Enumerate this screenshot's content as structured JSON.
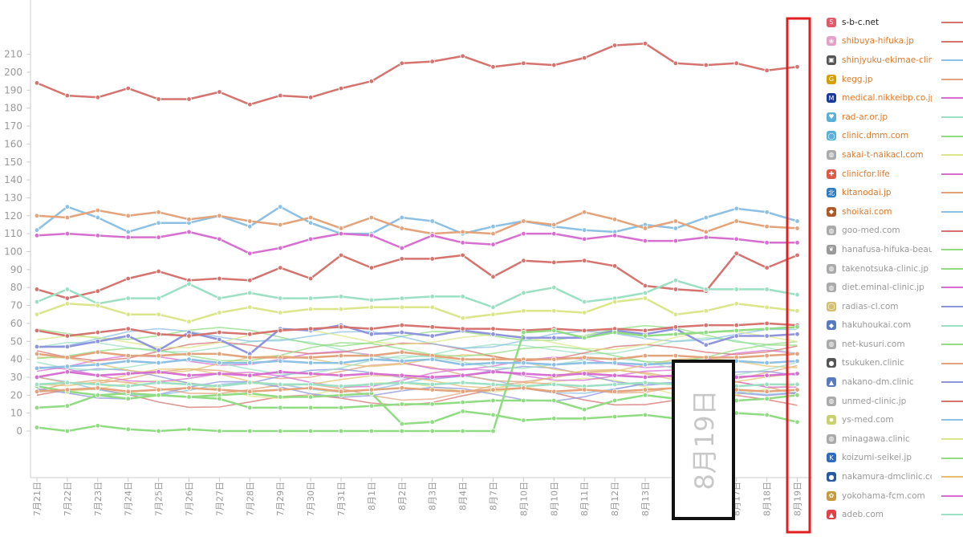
{
  "chart_data": {
    "type": "line",
    "categories": [
      "7月21日",
      "7月22日",
      "7月23日",
      "7月24日",
      "7月25日",
      "7月26日",
      "7月27日",
      "7月28日",
      "7月29日",
      "7月30日",
      "7月31日",
      "8月1日",
      "8月2日",
      "8月3日",
      "8月4日",
      "8月7日",
      "8月10日",
      "8月10日",
      "8月11日",
      "8月12日",
      "8月13日",
      "",
      "",
      "8月17日",
      "8月18日",
      "8月19日"
    ],
    "ylim": [
      0,
      210
    ],
    "yticks": [
      0,
      10,
      20,
      30,
      40,
      50,
      60,
      70,
      80,
      90,
      100,
      110,
      120,
      130,
      140,
      150,
      160,
      170,
      180,
      190,
      200,
      210
    ],
    "series": [
      {
        "name": "s-b-c.net",
        "color": "#d5736f",
        "values": [
          194,
          187,
          186,
          191,
          185,
          185,
          189,
          182,
          187,
          186,
          191,
          195,
          205,
          206,
          209,
          203,
          205,
          204,
          208,
          215,
          216,
          205,
          204,
          205,
          201,
          203
        ]
      },
      {
        "name": "shibuya-hifuka.jp",
        "color": "#8cc0e4",
        "values": [
          112,
          125,
          119,
          111,
          116,
          116,
          120,
          114,
          125,
          116,
          110,
          110,
          119,
          117,
          110,
          114,
          117,
          114,
          112,
          111,
          115,
          113,
          119,
          124,
          122,
          117
        ]
      },
      {
        "name": "shinjyuku-ekimae-clinic",
        "color": "#e3a37b",
        "values": [
          120,
          119,
          123,
          120,
          122,
          118,
          120,
          117,
          115,
          119,
          113,
          119,
          113,
          110,
          111,
          110,
          117,
          115,
          122,
          118,
          113,
          117,
          111,
          117,
          114,
          113
        ]
      },
      {
        "name": "kegg.jp",
        "color": "#d76fd1",
        "values": [
          109,
          110,
          109,
          108,
          108,
          111,
          107,
          99,
          102,
          107,
          110,
          109,
          102,
          109,
          105,
          104,
          110,
          110,
          107,
          109,
          106,
          106,
          108,
          107,
          105,
          105
        ]
      },
      {
        "name": "medical.nikkeibp.co.jp",
        "color": "#d5736f",
        "values": [
          79,
          74,
          78,
          85,
          89,
          84,
          85,
          84,
          91,
          85,
          98,
          91,
          96,
          96,
          98,
          86,
          95,
          94,
          95,
          92,
          81,
          79,
          78,
          99,
          91,
          98
        ]
      },
      {
        "name": "rad-ar.or.jp",
        "color": "#9ce0c4",
        "values": [
          72,
          79,
          71,
          74,
          74,
          82,
          74,
          77,
          74,
          74,
          75,
          73,
          74,
          75,
          75,
          69,
          77,
          80,
          72,
          74,
          77,
          84,
          79,
          79,
          79,
          76
        ]
      },
      {
        "name": "clinic.dmm.com",
        "color": "#dbe68a",
        "values": [
          65,
          71,
          70,
          65,
          65,
          61,
          66,
          69,
          66,
          68,
          68,
          69,
          69,
          69,
          63,
          65,
          67,
          67,
          66,
          72,
          74,
          65,
          67,
          71,
          69,
          67
        ]
      },
      {
        "name": "sakai-t-naikacl.com",
        "color": "#8e95dd",
        "values": [
          47,
          47,
          50,
          53,
          45,
          55,
          51,
          43,
          57,
          56,
          59,
          54,
          55,
          53,
          56,
          54,
          52,
          52,
          52,
          56,
          54,
          57,
          48,
          53,
          53,
          54
        ]
      },
      {
        "name": "clinicfor.life",
        "color": "#d5736f",
        "values": [
          56,
          53,
          55,
          57,
          54,
          53,
          55,
          54,
          56,
          57,
          58,
          57,
          59,
          58,
          57,
          57,
          56,
          57,
          56,
          57,
          56,
          58,
          59,
          59,
          60,
          59
        ]
      },
      {
        "name": "kitanodai.jp",
        "color": "#90dc82",
        "values": [
          2,
          0,
          3,
          1,
          0,
          1,
          0,
          0,
          0,
          0,
          0,
          0,
          0,
          0,
          0,
          0,
          55,
          56,
          52,
          55,
          53,
          54,
          55,
          56,
          57,
          58
        ]
      },
      {
        "name": "shoikai.com",
        "color": "#90dc82",
        "values": [
          25,
          22,
          20,
          21,
          20,
          19,
          20,
          21,
          19,
          19,
          20,
          21,
          4,
          5,
          11,
          9,
          6,
          7,
          7,
          8,
          9,
          7,
          8,
          10,
          9,
          5
        ]
      },
      {
        "name": "goo-med.com",
        "color": "#e3a37b",
        "values": [
          43,
          41,
          44,
          42,
          42,
          43,
          43,
          41,
          41,
          41,
          42,
          42,
          44,
          42,
          40,
          40,
          40,
          40,
          41,
          40,
          42,
          42,
          41,
          41,
          42,
          43
        ]
      },
      {
        "name": "hanafusa-hifuka-beauty",
        "color": "#8cc0e4",
        "values": [
          35,
          36,
          37,
          39,
          38,
          40,
          38,
          38,
          39,
          38,
          38,
          40,
          39,
          40,
          37,
          38,
          38,
          37,
          38,
          38,
          37,
          38,
          38,
          39,
          38,
          39
        ]
      },
      {
        "name": "takenotsuka-clinic.jp",
        "color": "#d76fd1",
        "values": [
          30,
          33,
          31,
          32,
          33,
          31,
          32,
          31,
          33,
          32,
          31,
          32,
          31,
          30,
          31,
          33,
          32,
          31,
          32,
          31,
          30,
          31,
          32,
          30,
          31,
          32
        ]
      },
      {
        "name": "diet.eminal-clinic.jp",
        "color": "#9ce0c4",
        "values": [
          26,
          27,
          26,
          25,
          27,
          26,
          25,
          27,
          26,
          26,
          25,
          26,
          27,
          26,
          27,
          26,
          25,
          26,
          25,
          26,
          27,
          26,
          26,
          25,
          26,
          26
        ]
      },
      {
        "name": "radias-cl.com",
        "color": "#e3a37b",
        "values": [
          22,
          23,
          24,
          22,
          23,
          24,
          23,
          22,
          23,
          24,
          22,
          23,
          24,
          23,
          22,
          23,
          24,
          22,
          23,
          22,
          23,
          24,
          22,
          23,
          22,
          23
        ]
      },
      {
        "name": "hakuhoukai.com",
        "color": "#90dc82",
        "values": [
          13,
          14,
          20,
          18,
          20,
          19,
          18,
          13,
          13,
          13,
          13,
          14,
          15,
          15,
          16,
          17,
          17,
          17,
          12,
          17,
          20,
          18,
          17,
          17,
          18,
          20
        ]
      }
    ]
  },
  "legend": [
    {
      "label": "s-b-c.net",
      "label_color": "#222222",
      "icon": "sbc-logo-icon",
      "icon_color": "#e05a6a",
      "swatch": "#d5736f"
    },
    {
      "label": "shibuya-hifuka.jp",
      "label_color": "#e07a2a",
      "icon": "flower-icon",
      "icon_color": "#e5a0c8",
      "swatch": "#d5736f"
    },
    {
      "label": "shinjyuku-ekimae-clinic",
      "label_color": "#e07a2a",
      "icon": "frame-icon",
      "icon_color": "#555555",
      "swatch": "#8cc0e4"
    },
    {
      "label": "kegg.jp",
      "label_color": "#e07a2a",
      "icon": "kegg-logo-icon",
      "icon_color": "#d4a000",
      "swatch": "#e3a37b"
    },
    {
      "label": "medical.nikkeibp.co.jp",
      "label_color": "#e07a2a",
      "icon": "m-circle-icon",
      "icon_color": "#1a3a9c",
      "swatch": "#d76fd1"
    },
    {
      "label": "rad-ar.or.jp",
      "label_color": "#e07a2a",
      "icon": "heart-icon",
      "icon_color": "#5ab0d8",
      "swatch": "#9ce0c4"
    },
    {
      "label": "clinic.dmm.com",
      "label_color": "#e07a2a",
      "icon": "ring-icon",
      "icon_color": "#5ab0d8",
      "swatch": "#90dc82"
    },
    {
      "label": "sakai-t-naikacl.com",
      "label_color": "#e07a2a",
      "icon": "globe-icon",
      "icon_color": "#aaaaaa",
      "swatch": "#dbe68a"
    },
    {
      "label": "clinicfor.life",
      "label_color": "#e07a2a",
      "icon": "cross-icon",
      "icon_color": "#e0584a",
      "swatch": "#d76fd1"
    },
    {
      "label": "kitanodai.jp",
      "label_color": "#e07a2a",
      "icon": "kita-logo-icon",
      "icon_color": "#2f7cc0",
      "swatch": "#e3a37b"
    },
    {
      "label": "shoikai.com",
      "label_color": "#e07a2a",
      "icon": "shield-icon",
      "icon_color": "#b05a2a",
      "swatch": "#8cc0e4"
    },
    {
      "label": "goo-med.com",
      "label_color": "#999999",
      "icon": "globe-icon",
      "icon_color": "#aaaaaa",
      "swatch": "#d5736f"
    },
    {
      "label": "hanafusa-hifuka-beauty",
      "label_color": "#999999",
      "icon": "leaf-icon",
      "icon_color": "#999999",
      "swatch": "#90dc82"
    },
    {
      "label": "takenotsuka-clinic.jp",
      "label_color": "#999999",
      "icon": "globe-icon",
      "icon_color": "#aaaaaa",
      "swatch": "#90dc82"
    },
    {
      "label": "diet.eminal-clinic.jp",
      "label_color": "#999999",
      "icon": "globe-icon",
      "icon_color": "#aaaaaa",
      "swatch": "#d76fd1"
    },
    {
      "label": "radias-cl.com",
      "label_color": "#999999",
      "icon": "ring-icon",
      "icon_color": "#d4c070",
      "swatch": "#8e95dd"
    },
    {
      "label": "hakuhoukai.com",
      "label_color": "#999999",
      "icon": "drop-icon",
      "icon_color": "#5a7ac0",
      "swatch": "#9ce0c4"
    },
    {
      "label": "net-kusuri.com",
      "label_color": "#999999",
      "icon": "globe-icon",
      "icon_color": "#aaaaaa",
      "swatch": "#90dc82"
    },
    {
      "label": "tsukuken.clinic",
      "label_color": "#999999",
      "icon": "dots-icon",
      "icon_color": "#555555",
      "swatch": "#e3a37b"
    },
    {
      "label": "nakano-dm.clinic",
      "label_color": "#999999",
      "icon": "house-icon",
      "icon_color": "#5a7ac0",
      "swatch": "#8e95dd"
    },
    {
      "label": "unmed-clinic.jp",
      "label_color": "#999999",
      "icon": "globe-icon",
      "icon_color": "#aaaaaa",
      "swatch": "#d5736f"
    },
    {
      "label": "ys-med.com",
      "label_color": "#999999",
      "icon": "sun-icon",
      "icon_color": "#c8d070",
      "swatch": "#8cc0e4"
    },
    {
      "label": "minagawa.clinic",
      "label_color": "#999999",
      "icon": "globe-icon",
      "icon_color": "#aaaaaa",
      "swatch": "#dbe68a"
    },
    {
      "label": "koizumi-seikei.jp",
      "label_color": "#999999",
      "icon": "k-logo-icon",
      "icon_color": "#2f6cc0",
      "swatch": "#90dc82"
    },
    {
      "label": "nakamura-dmclinic.com",
      "label_color": "#999999",
      "icon": "swirl-icon",
      "icon_color": "#2a5aa0",
      "swatch": "#e3c070"
    },
    {
      "label": "yokohama-fcm.com",
      "label_color": "#999999",
      "icon": "crest-icon",
      "icon_color": "#c89a40",
      "swatch": "#d76fd1"
    },
    {
      "label": "adeb.com",
      "label_color": "#999999",
      "icon": "a-logo-icon",
      "icon_color": "#e0404a",
      "swatch": "#9ce0c4"
    }
  ],
  "overlay": {
    "zoom_label": "8月19日"
  }
}
